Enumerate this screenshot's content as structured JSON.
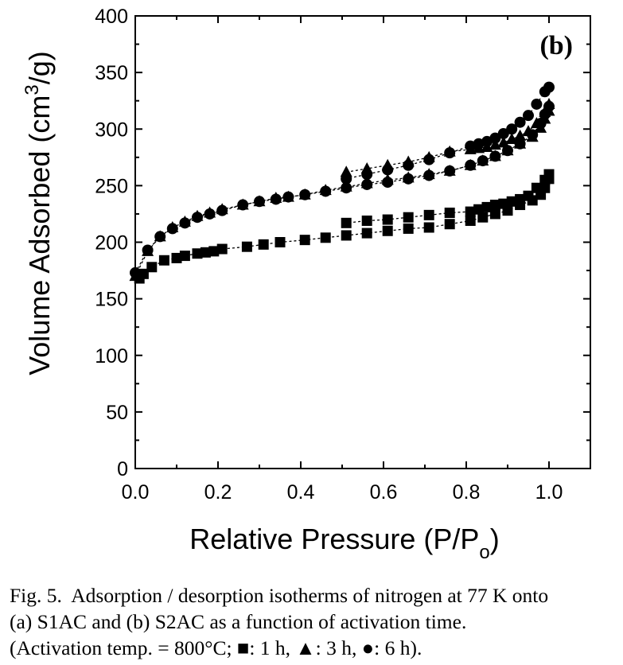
{
  "panel_label": "(b)",
  "caption": {
    "line1": "Fig. 5.  Adsorption / desorption isotherms of nitrogen at 77 K onto",
    "line2": "(a) S1AC and (b) S2AC as a function of activation time.",
    "line3": "(Activation temp. = 800°C; ■: 1 h, ▲: 3 h, ●: 6 h)."
  },
  "chart_data": {
    "type": "scatter",
    "xlabel": "Relative Pressure (P/P",
    "xlabel_sub": "o",
    "xlabel_end": ")",
    "ylabel": "Volume Adsorbed (cm",
    "ylabel_sup": "3",
    "ylabel_end": "/g)",
    "xlim": [
      0.0,
      1.1
    ],
    "ylim": [
      0,
      400
    ],
    "xticks": [
      "0.0",
      "0.2",
      "0.4",
      "0.6",
      "0.8",
      "1.0"
    ],
    "yticks": [
      "0",
      "50",
      "100",
      "150",
      "200",
      "250",
      "300",
      "350",
      "400"
    ],
    "series": [
      {
        "marker": "square",
        "color": "#000000",
        "adsorption": [
          [
            0.01,
            168
          ],
          [
            0.02,
            172
          ],
          [
            0.04,
            178
          ],
          [
            0.07,
            184
          ],
          [
            0.1,
            186
          ],
          [
            0.12,
            188
          ],
          [
            0.15,
            190
          ],
          [
            0.17,
            191
          ],
          [
            0.19,
            192
          ],
          [
            0.21,
            194
          ],
          [
            0.27,
            196
          ],
          [
            0.31,
            198
          ],
          [
            0.35,
            200
          ],
          [
            0.41,
            202
          ],
          [
            0.46,
            204
          ],
          [
            0.51,
            206
          ],
          [
            0.56,
            208
          ],
          [
            0.61,
            210
          ],
          [
            0.66,
            212
          ],
          [
            0.71,
            213
          ],
          [
            0.76,
            216
          ],
          [
            0.81,
            219
          ],
          [
            0.84,
            222
          ],
          [
            0.87,
            225
          ],
          [
            0.9,
            228
          ],
          [
            0.93,
            233
          ],
          [
            0.96,
            237
          ],
          [
            0.98,
            242
          ],
          [
            0.99,
            248
          ],
          [
            1.0,
            256
          ]
        ],
        "desorption": [
          [
            1.0,
            260
          ],
          [
            0.99,
            255
          ],
          [
            0.97,
            248
          ],
          [
            0.95,
            241
          ],
          [
            0.93,
            238
          ],
          [
            0.91,
            236
          ],
          [
            0.89,
            234
          ],
          [
            0.87,
            233
          ],
          [
            0.85,
            231
          ],
          [
            0.83,
            229
          ],
          [
            0.81,
            227
          ],
          [
            0.76,
            226
          ],
          [
            0.71,
            224
          ],
          [
            0.66,
            222
          ],
          [
            0.61,
            220
          ],
          [
            0.56,
            219
          ],
          [
            0.51,
            217
          ]
        ]
      },
      {
        "marker": "triangle",
        "color": "#000000",
        "adsorption": [
          [
            0.0,
            170
          ],
          [
            0.03,
            192
          ],
          [
            0.06,
            205
          ],
          [
            0.09,
            213
          ],
          [
            0.12,
            218
          ],
          [
            0.15,
            223
          ],
          [
            0.18,
            226
          ],
          [
            0.21,
            229
          ],
          [
            0.26,
            233
          ],
          [
            0.3,
            236
          ],
          [
            0.34,
            239
          ],
          [
            0.37,
            240
          ],
          [
            0.41,
            242
          ],
          [
            0.46,
            246
          ],
          [
            0.51,
            249
          ],
          [
            0.56,
            252
          ],
          [
            0.61,
            255
          ],
          [
            0.66,
            257
          ],
          [
            0.71,
            260
          ],
          [
            0.76,
            263
          ],
          [
            0.81,
            268
          ],
          [
            0.84,
            272
          ],
          [
            0.87,
            276
          ],
          [
            0.9,
            281
          ],
          [
            0.93,
            287
          ],
          [
            0.96,
            293
          ],
          [
            0.98,
            301
          ],
          [
            0.99,
            309
          ],
          [
            1.0,
            316
          ]
        ],
        "desorption": [
          [
            1.0,
            322
          ],
          [
            0.99,
            315
          ],
          [
            0.97,
            305
          ],
          [
            0.95,
            298
          ],
          [
            0.93,
            294
          ],
          [
            0.91,
            291
          ],
          [
            0.89,
            288
          ],
          [
            0.87,
            286
          ],
          [
            0.85,
            284
          ],
          [
            0.83,
            283
          ],
          [
            0.81,
            282
          ],
          [
            0.76,
            280
          ],
          [
            0.71,
            275
          ],
          [
            0.66,
            271
          ],
          [
            0.61,
            268
          ],
          [
            0.56,
            265
          ],
          [
            0.51,
            262
          ]
        ]
      },
      {
        "marker": "circle",
        "color": "#000000",
        "adsorption": [
          [
            0.0,
            173
          ],
          [
            0.03,
            193
          ],
          [
            0.06,
            205
          ],
          [
            0.09,
            212
          ],
          [
            0.12,
            217
          ],
          [
            0.15,
            222
          ],
          [
            0.18,
            225
          ],
          [
            0.21,
            228
          ],
          [
            0.26,
            233
          ],
          [
            0.3,
            236
          ],
          [
            0.34,
            238
          ],
          [
            0.37,
            240
          ],
          [
            0.41,
            242
          ],
          [
            0.46,
            245
          ],
          [
            0.51,
            248
          ],
          [
            0.56,
            251
          ],
          [
            0.61,
            253
          ],
          [
            0.66,
            256
          ],
          [
            0.71,
            259
          ],
          [
            0.76,
            263
          ],
          [
            0.81,
            268
          ],
          [
            0.84,
            272
          ],
          [
            0.87,
            276
          ],
          [
            0.9,
            281
          ],
          [
            0.93,
            287
          ],
          [
            0.96,
            295
          ],
          [
            0.98,
            305
          ],
          [
            0.99,
            313
          ],
          [
            1.0,
            320
          ]
        ],
        "desorption": [
          [
            1.0,
            337
          ],
          [
            0.99,
            333
          ],
          [
            0.97,
            322
          ],
          [
            0.95,
            312
          ],
          [
            0.93,
            306
          ],
          [
            0.91,
            300
          ],
          [
            0.89,
            296
          ],
          [
            0.87,
            292
          ],
          [
            0.85,
            289
          ],
          [
            0.83,
            287
          ],
          [
            0.81,
            285
          ],
          [
            0.76,
            279
          ],
          [
            0.71,
            273
          ],
          [
            0.66,
            268
          ],
          [
            0.61,
            264
          ],
          [
            0.56,
            260
          ],
          [
            0.51,
            256
          ]
        ]
      }
    ]
  }
}
